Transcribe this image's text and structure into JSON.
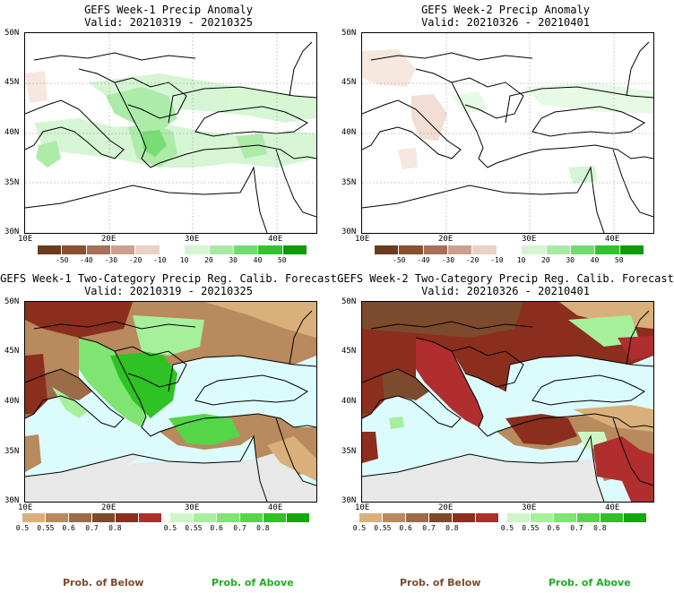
{
  "panels": [
    {
      "title": "GEFS Week-1 Precip Anomaly",
      "valid": "Valid: 20210319 - 20210325"
    },
    {
      "title": "GEFS Week-2 Precip Anomaly",
      "valid": "Valid: 20210326 - 20210401"
    },
    {
      "title": "GEFS Week-1 Two-Category Precip Reg. Calib. Forecast",
      "valid": "Valid: 20210319 - 20210325"
    },
    {
      "title": "GEFS Week-2 Two-Category Precip Reg. Calib. Forecast",
      "valid": "Valid: 20210326 - 20210401"
    }
  ],
  "map_axes": {
    "lat_labels": [
      "50N",
      "45N",
      "40N",
      "35N",
      "30N"
    ],
    "lon_labels": [
      "10E",
      "20E",
      "30E",
      "40E"
    ]
  },
  "anomaly_colorbar": {
    "ticks": [
      "-50",
      "-40",
      "-30",
      "-20",
      "-10",
      "10",
      "20",
      "30",
      "40",
      "50"
    ],
    "colors": [
      "#6b3b1f",
      "#8a5030",
      "#a8705a",
      "#caa08e",
      "#ead2c6",
      "#ffffff",
      "#d4f5d2",
      "#a8eaa4",
      "#72dc6e",
      "#33c22f",
      "#0f9a0b"
    ]
  },
  "prob_below_colorbar": {
    "ticks": [
      "0.5",
      "0.55",
      "0.6",
      "0.7",
      "0.8"
    ],
    "colors": [
      "#d9b07b",
      "#b88a5d",
      "#9c6b48",
      "#7c4a2c",
      "#8b2e1e",
      "#b02e2e"
    ],
    "label": "Prob. of Below",
    "label_color": "#7a4a2a"
  },
  "prob_above_colorbar": {
    "ticks": [
      "0.5",
      "0.55",
      "0.6",
      "0.7",
      "0.8"
    ],
    "colors": [
      "#ccf7c4",
      "#a6f09c",
      "#7fe472",
      "#55d548",
      "#2ec224",
      "#12a80a"
    ],
    "label": "Prob. of Above",
    "label_color": "#22aa22"
  },
  "map_colors": {
    "sea_prob": "#dcfbfc",
    "no_data": "#e8e8e8"
  }
}
